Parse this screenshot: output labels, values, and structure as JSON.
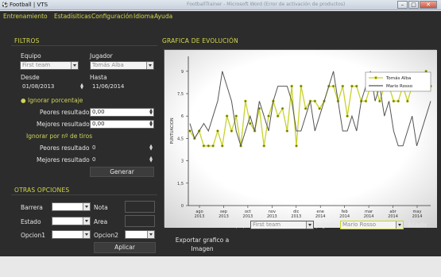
{
  "window": {
    "title": "Football | VTS",
    "bg_title": "FootballTrainer - Microsoft Word (Error de activación de productos)",
    "btn_min": "–",
    "btn_max": "□",
    "btn_close": "✕"
  },
  "menu": {
    "items": [
      "Entrenamiento",
      "Estadísiticas",
      "Configuración",
      "Idioma",
      "Ayuda"
    ]
  },
  "filtros": {
    "title": "FILTROS",
    "equipo_label": "Equipo",
    "equipo_value": "First team",
    "jugador_label": "Jugador",
    "jugador_value": "Tomás Alba",
    "desde_label": "Desde",
    "desde_value": "01/08/2013",
    "hasta_label": "Hasta",
    "hasta_value": "11/06/2014",
    "ignorar_porcentaje": "Ignorar porcentaje",
    "peores_label": "Peores resultados",
    "peores_value": "0,00",
    "mejores_label": "Mejores resultados",
    "mejores_value": "0,00",
    "ignorar_tiros": "Ignorar por nº de tiros",
    "peores_tiros_label": "Peores resultados",
    "peores_tiros_value": "0",
    "mejores_tiros_label": "Mejores resultados",
    "mejores_tiros_value": "0",
    "generar": "Generar"
  },
  "otras": {
    "title": "OTRAS OPCIONES",
    "barrera": "Barrera",
    "nota": "Nota",
    "estado": "Estado",
    "area": "Area",
    "opcion1": "Opcion1",
    "opcion2": "Opcion2",
    "aplicar": "Aplicar"
  },
  "grafica": {
    "title": "GRAFICA DE EVOLUCIÓN",
    "equipo_label": "Equipo",
    "equipo_value": "First team",
    "jugador_label": "Jugador",
    "jugador_value": "Mario Rosso",
    "anadir": "Añadir",
    "exportar": "Exportar grafico a Imagen"
  },
  "chart_data": {
    "type": "line",
    "ylabel": "PUNTUACION",
    "ylim": [
      0,
      10
    ],
    "yticks": [
      "0",
      "1,5",
      "3",
      "4,5",
      "6",
      "7,5",
      "9"
    ],
    "ytick_values": [
      0,
      1.5,
      3,
      4.5,
      6,
      7.5,
      9
    ],
    "xticks": [
      [
        "ago",
        "2013"
      ],
      [
        "sep",
        "2013"
      ],
      [
        "oct",
        "2013"
      ],
      [
        "nov",
        "2013"
      ],
      [
        "dic",
        "2013"
      ],
      [
        "ene",
        "2014"
      ],
      [
        "feb",
        "2014"
      ],
      [
        "mar",
        "2014"
      ],
      [
        "abr",
        "2014"
      ],
      [
        "may",
        "2014"
      ]
    ],
    "legend_position": "top-right",
    "colors": {
      "series1": "#c8d22a",
      "series2": "#555555"
    },
    "series": [
      {
        "name": "Tomás Alba",
        "values": [
          5,
          4.5,
          5,
          4,
          4,
          4,
          5,
          4,
          6,
          5,
          6,
          4,
          7,
          5.5,
          5,
          6.5,
          4,
          6,
          7,
          6,
          6.5,
          5,
          8,
          4,
          8,
          6.5,
          7,
          7,
          6.5,
          7,
          8,
          8,
          7,
          8,
          6,
          8,
          8,
          7,
          7,
          8,
          8,
          7,
          8,
          8,
          7,
          7,
          8,
          7,
          8,
          8,
          8,
          9,
          8
        ]
      },
      {
        "name": "Mario Rosso",
        "values": [
          5.5,
          4.5,
          5,
          5.5,
          5,
          6,
          7,
          9,
          8,
          7,
          5,
          4,
          5,
          6,
          5,
          7,
          6,
          5,
          7,
          8,
          8,
          8,
          7,
          5,
          5,
          6,
          7,
          5,
          6,
          7,
          8,
          9,
          7,
          5,
          5,
          6,
          5,
          7,
          8,
          9,
          7,
          8,
          6,
          7,
          5,
          4,
          4,
          5,
          6,
          4,
          5,
          6,
          7
        ]
      }
    ]
  }
}
